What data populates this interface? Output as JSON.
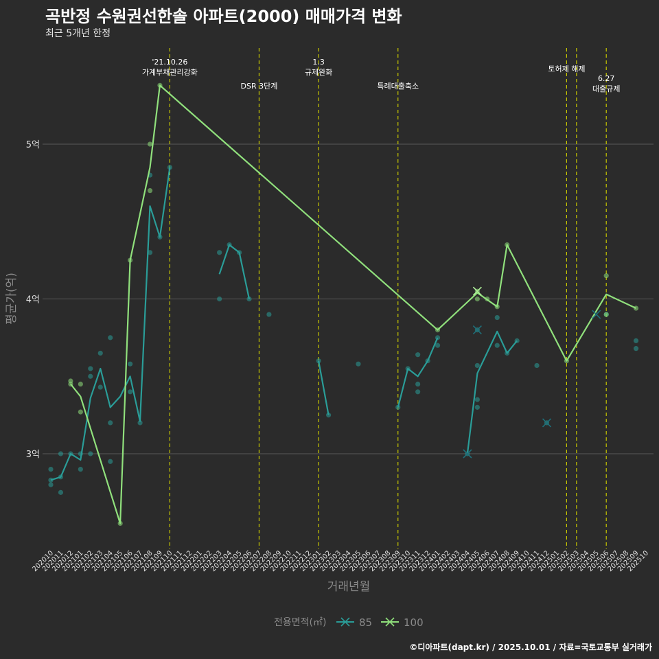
{
  "title": "곡반정 수원권선한솔 아파트(2000) 매매가격 변화",
  "subtitle": "최근 5개년 한정",
  "caption": "©디아파트(dapt.kr) / 2025.10.01 / 자료=국토교통부 실거래가",
  "colors": {
    "s85": "#2a9d98",
    "s100": "#90e07c",
    "vline": "#c8c800",
    "grid": "#5a5a5a",
    "text": "#e0e0e0"
  },
  "chart_data": {
    "type": "line",
    "title": "곡반정 수원권선한솔 아파트(2000) 매매가격 변화",
    "xlabel": "거래년월",
    "ylabel": "평균가(억)",
    "ylim": [
      2.4,
      5.7
    ],
    "yticks": [
      3,
      4,
      5
    ],
    "ytick_labels": [
      "3억",
      "4억",
      "5억"
    ],
    "x_categories": [
      "202010",
      "202011",
      "202012",
      "202101",
      "202102",
      "202103",
      "202104",
      "202105",
      "202106",
      "202107",
      "202108",
      "202109",
      "202110",
      "202111",
      "202112",
      "202201",
      "202202",
      "202203",
      "202204",
      "202205",
      "202206",
      "202207",
      "202208",
      "202209",
      "202210",
      "202211",
      "202212",
      "202301",
      "202302",
      "202303",
      "202304",
      "202305",
      "202306",
      "202307",
      "202308",
      "202309",
      "202310",
      "202311",
      "202312",
      "202401",
      "202402",
      "202403",
      "202404",
      "202405",
      "202406",
      "202407",
      "202408",
      "202409",
      "202410",
      "202411",
      "202412",
      "202501",
      "202502",
      "202503",
      "202504",
      "202505",
      "202506",
      "202507",
      "202508",
      "202509",
      "202510"
    ],
    "legend": {
      "title": "전용면적(㎡)",
      "position": "bottom"
    },
    "series": [
      {
        "name": "85",
        "line_segments": [
          [
            [
              "202010",
              2.83
            ],
            [
              "202011",
              2.85
            ],
            [
              "202012",
              3.0
            ],
            [
              "202101",
              2.96
            ],
            [
              "202102",
              3.36
            ],
            [
              "202103",
              3.55
            ],
            [
              "202104",
              3.3
            ],
            [
              "202105",
              3.37
            ],
            [
              "202106",
              3.5
            ],
            [
              "202107",
              3.21
            ],
            [
              "202108",
              4.6
            ],
            [
              "202109",
              4.4
            ],
            [
              "202110",
              4.85
            ]
          ],
          [
            [
              "202203",
              4.16
            ],
            [
              "202204",
              4.35
            ],
            [
              "202205",
              4.3
            ],
            [
              "202206",
              4.0
            ]
          ],
          [
            [
              "202301",
              3.6
            ],
            [
              "202302",
              3.25
            ]
          ],
          [
            [
              "202309",
              3.3
            ],
            [
              "202310",
              3.55
            ],
            [
              "202311",
              3.5
            ],
            [
              "202312",
              3.6
            ],
            [
              "202401",
              3.75
            ]
          ],
          [
            [
              "202404",
              3.0
            ],
            [
              "202405",
              3.52
            ],
            [
              "202407",
              3.79
            ],
            [
              "202408",
              3.65
            ],
            [
              "202409",
              3.73
            ]
          ]
        ],
        "points": [
          [
            "202010",
            2.8
          ],
          [
            "202010",
            2.83
          ],
          [
            "202010",
            2.9
          ],
          [
            "202011",
            2.75
          ],
          [
            "202011",
            2.85
          ],
          [
            "202011",
            3.0
          ],
          [
            "202012",
            3.0
          ],
          [
            "202101",
            2.9
          ],
          [
            "202101",
            3.0
          ],
          [
            "202102",
            3.0
          ],
          [
            "202102",
            3.5
          ],
          [
            "202102",
            3.55
          ],
          [
            "202103",
            3.43
          ],
          [
            "202103",
            3.65
          ],
          [
            "202104",
            2.95
          ],
          [
            "202104",
            3.2
          ],
          [
            "202104",
            3.75
          ],
          [
            "202106",
            3.4
          ],
          [
            "202106",
            3.58
          ],
          [
            "202107",
            3.2
          ],
          [
            "202108",
            4.3
          ],
          [
            "202108",
            4.8
          ],
          [
            "202109",
            4.4
          ],
          [
            "202110",
            4.85
          ],
          [
            "202203",
            4.0
          ],
          [
            "202203",
            4.3
          ],
          [
            "202204",
            4.35
          ],
          [
            "202205",
            4.3
          ],
          [
            "202206",
            4.0
          ],
          [
            "202208",
            3.9
          ],
          [
            "202301",
            3.6
          ],
          [
            "202302",
            3.25
          ],
          [
            "202305",
            3.58
          ],
          [
            "202309",
            3.3
          ],
          [
            "202310",
            3.55
          ],
          [
            "202311",
            3.4
          ],
          [
            "202311",
            3.45
          ],
          [
            "202311",
            3.64
          ],
          [
            "202312",
            3.6
          ],
          [
            "202401",
            3.7
          ],
          [
            "202401",
            3.75
          ],
          [
            "202404",
            3.0
          ],
          [
            "202405",
            3.3
          ],
          [
            "202405",
            3.35
          ],
          [
            "202405",
            3.57
          ],
          [
            "202405",
            3.8
          ],
          [
            "202407",
            3.7
          ],
          [
            "202407",
            3.88
          ],
          [
            "202408",
            3.65
          ],
          [
            "202409",
            3.73
          ],
          [
            "202411",
            3.57
          ],
          [
            "202412",
            3.2
          ],
          [
            "202506",
            3.9
          ],
          [
            "202509",
            3.73
          ],
          [
            "202509",
            3.68
          ]
        ],
        "cross_markers": [
          [
            "202404",
            3.0
          ],
          [
            "202405",
            3.8
          ],
          [
            "202412",
            3.2
          ],
          [
            "202505",
            3.9
          ]
        ]
      },
      {
        "name": "100",
        "line_segments": [
          [
            [
              "202012",
              3.45
            ],
            [
              "202101",
              3.37
            ],
            [
              "202105",
              2.55
            ],
            [
              "202106",
              4.25
            ],
            [
              "202108",
              4.85
            ],
            [
              "202109",
              5.38
            ],
            [
              "202401",
              3.8
            ],
            [
              "202405",
              4.04
            ],
            [
              "202407",
              3.95
            ],
            [
              "202408",
              4.35
            ],
            [
              "202502",
              3.6
            ],
            [
              "202506",
              4.03
            ],
            [
              "202509",
              3.94
            ]
          ]
        ],
        "points": [
          [
            "202012",
            3.45
          ],
          [
            "202012",
            3.47
          ],
          [
            "202101",
            3.45
          ],
          [
            "202101",
            3.27
          ],
          [
            "202105",
            2.55
          ],
          [
            "202106",
            4.25
          ],
          [
            "202108",
            4.7
          ],
          [
            "202108",
            5.0
          ],
          [
            "202109",
            5.38
          ],
          [
            "202401",
            3.8
          ],
          [
            "202405",
            4.0
          ],
          [
            "202405",
            4.05
          ],
          [
            "202406",
            4.0
          ],
          [
            "202407",
            3.95
          ],
          [
            "202408",
            4.35
          ],
          [
            "202502",
            3.6
          ],
          [
            "202506",
            4.15
          ],
          [
            "202506",
            3.9
          ],
          [
            "202509",
            3.94
          ]
        ],
        "cross_markers": [
          [
            "202405",
            4.05
          ]
        ]
      }
    ],
    "annotations": [
      {
        "x": "202110",
        "lines": [
          "'21.10.26",
          "가계부채관리강화"
        ],
        "level": "top"
      },
      {
        "x": "202207",
        "lines": [
          "DSR 3단계"
        ],
        "level": "mid"
      },
      {
        "x": "202301",
        "lines": [
          "1.3",
          "규제완화"
        ],
        "level": "top"
      },
      {
        "x": "202309",
        "lines": [
          "특례대출축소"
        ],
        "level": "mid"
      },
      {
        "x": "202502",
        "lines": [
          "토허제 해제"
        ],
        "level": "upper"
      },
      {
        "x": "202503",
        "lines": [],
        "level": "upper"
      },
      {
        "x": "202506",
        "lines": [
          "6.27",
          "대출규제"
        ],
        "level": "low"
      }
    ]
  }
}
